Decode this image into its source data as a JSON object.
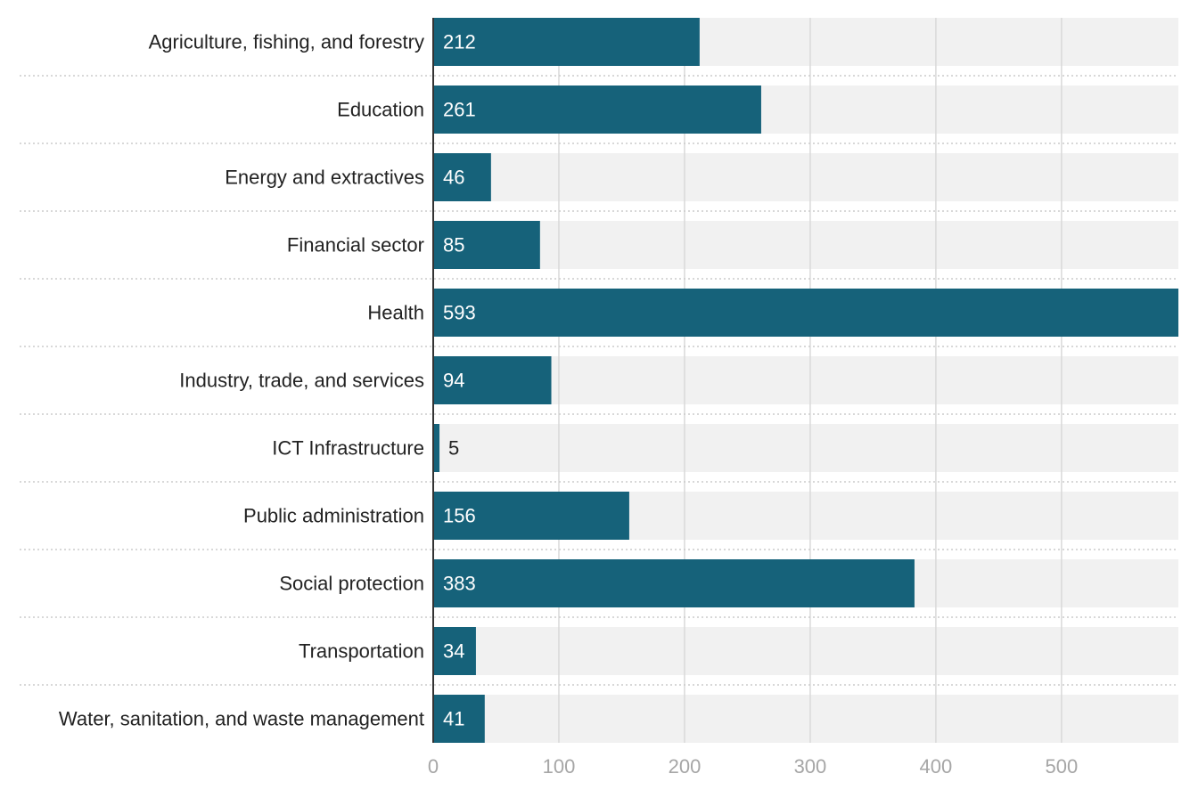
{
  "chart_data": {
    "type": "bar",
    "orientation": "horizontal",
    "categories": [
      "Agriculture, fishing, and forestry",
      "Education",
      "Energy and extractives",
      "Financial sector",
      "Health",
      "Industry, trade, and services",
      "ICT Infrastructure",
      "Public administration",
      "Social protection",
      "Transportation",
      "Water, sanitation, and waste management"
    ],
    "values": [
      212,
      261,
      46,
      85,
      593,
      94,
      5,
      156,
      383,
      34,
      41
    ],
    "xlim": [
      0,
      593
    ],
    "xticks": [
      0,
      100,
      200,
      300,
      400,
      500
    ],
    "title": "",
    "xlabel": "",
    "ylabel": "",
    "grid": true,
    "legend": "none",
    "colors": {
      "bar": "#16627a",
      "track": "#f1f1f1",
      "grid": "#d9d9d9",
      "axis": "#333333",
      "separator": "#cccccc",
      "label_inside": "#ffffff",
      "label_outside": "#222222",
      "tick_text": "#a6a6a6"
    }
  }
}
